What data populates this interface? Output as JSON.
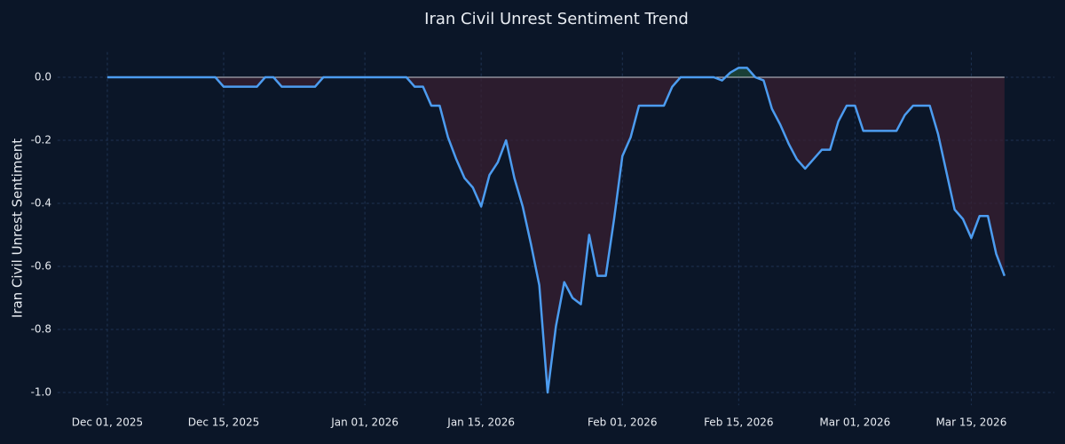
{
  "chart_data": {
    "type": "line",
    "title": "Iran Civil Unrest Sentiment Trend",
    "y_label": "Iran Civil Unrest Sentiment",
    "x": [
      "2025-12-01",
      "2025-12-02",
      "2025-12-03",
      "2025-12-04",
      "2025-12-05",
      "2025-12-06",
      "2025-12-07",
      "2025-12-08",
      "2025-12-09",
      "2025-12-10",
      "2025-12-11",
      "2025-12-12",
      "2025-12-13",
      "2025-12-14",
      "2025-12-15",
      "2025-12-16",
      "2025-12-17",
      "2025-12-18",
      "2025-12-19",
      "2025-12-20",
      "2025-12-21",
      "2025-12-22",
      "2025-12-23",
      "2025-12-24",
      "2025-12-25",
      "2025-12-26",
      "2025-12-27",
      "2025-12-28",
      "2025-12-29",
      "2025-12-30",
      "2025-12-31",
      "2026-01-01",
      "2026-01-02",
      "2026-01-03",
      "2026-01-04",
      "2026-01-05",
      "2026-01-06",
      "2026-01-07",
      "2026-01-08",
      "2026-01-09",
      "2026-01-10",
      "2026-01-11",
      "2026-01-12",
      "2026-01-13",
      "2026-01-14",
      "2026-01-15",
      "2026-01-16",
      "2026-01-17",
      "2026-01-18",
      "2026-01-19",
      "2026-01-20",
      "2026-01-21",
      "2026-01-22",
      "2026-01-23",
      "2026-01-24",
      "2026-01-25",
      "2026-01-26",
      "2026-01-27",
      "2026-01-28",
      "2026-01-29",
      "2026-01-30",
      "2026-01-31",
      "2026-02-01",
      "2026-02-02",
      "2026-02-03",
      "2026-02-04",
      "2026-02-05",
      "2026-02-06",
      "2026-02-07",
      "2026-02-08",
      "2026-02-09",
      "2026-02-10",
      "2026-02-11",
      "2026-02-12",
      "2026-02-13",
      "2026-02-14",
      "2026-02-15",
      "2026-02-16",
      "2026-02-17",
      "2026-02-18",
      "2026-02-19",
      "2026-02-20",
      "2026-02-21",
      "2026-02-22",
      "2026-02-23",
      "2026-02-24",
      "2026-02-25",
      "2026-02-26",
      "2026-02-27",
      "2026-02-28",
      "2026-03-01",
      "2026-03-02",
      "2026-03-03",
      "2026-03-04",
      "2026-03-05",
      "2026-03-06",
      "2026-03-07",
      "2026-03-08",
      "2026-03-09",
      "2026-03-10",
      "2026-03-11",
      "2026-03-12",
      "2026-03-13",
      "2026-03-14",
      "2026-03-15",
      "2026-03-16",
      "2026-03-17",
      "2026-03-18",
      "2026-03-19"
    ],
    "series": [
      {
        "name": "Iran Civil Unrest Sentiment",
        "color": "#4c9cf0",
        "values": [
          0,
          0,
          0,
          0,
          0,
          0,
          0,
          0,
          0,
          0,
          0,
          0,
          0,
          0,
          -0.03,
          -0.03,
          -0.03,
          -0.03,
          -0.03,
          0,
          0,
          -0.03,
          -0.03,
          -0.03,
          -0.03,
          -0.03,
          0,
          0,
          0,
          0,
          0,
          0,
          0,
          0,
          0,
          0,
          0,
          -0.03,
          -0.03,
          -0.09,
          -0.09,
          -0.19,
          -0.26,
          -0.32,
          -0.35,
          -0.41,
          -0.31,
          -0.27,
          -0.2,
          -0.32,
          -0.41,
          -0.53,
          -0.66,
          -1.0,
          -0.79,
          -0.65,
          -0.7,
          -0.72,
          -0.5,
          -0.63,
          -0.63,
          -0.45,
          -0.25,
          -0.19,
          -0.09,
          -0.09,
          -0.09,
          -0.09,
          -0.03,
          0,
          0,
          0,
          0,
          0,
          -0.01,
          0.015,
          0.03,
          0.03,
          0,
          -0.01,
          -0.1,
          -0.15,
          -0.21,
          -0.26,
          -0.29,
          -0.26,
          -0.23,
          -0.23,
          -0.14,
          -0.09,
          -0.09,
          -0.17,
          -0.17,
          -0.17,
          -0.17,
          -0.17,
          -0.12,
          -0.09,
          -0.09,
          -0.09,
          -0.18,
          -0.3,
          -0.42,
          -0.45,
          -0.51,
          -0.44,
          -0.44,
          -0.56,
          -0.63
        ]
      }
    ],
    "fill_below_color": "#3a1f30",
    "fill_above_color": "#1d4a3a",
    "xlim": [
      "2025-11-25",
      "2026-03-25"
    ],
    "xticks": [
      {
        "value": "2025-12-01",
        "label": "Dec 01, 2025"
      },
      {
        "value": "2025-12-15",
        "label": "Dec 15, 2025"
      },
      {
        "value": "2026-01-01",
        "label": "Jan 01, 2026"
      },
      {
        "value": "2026-01-15",
        "label": "Jan 15, 2026"
      },
      {
        "value": "2026-02-01",
        "label": "Feb 01, 2026"
      },
      {
        "value": "2026-02-15",
        "label": "Feb 15, 2026"
      },
      {
        "value": "2026-03-01",
        "label": "Mar 01, 2026"
      },
      {
        "value": "2026-03-15",
        "label": "Mar 15, 2026"
      }
    ],
    "ylim": [
      -1.04,
      0.08
    ],
    "yticks": [
      {
        "value": 0,
        "label": "0.0"
      },
      {
        "value": -0.2,
        "label": "-0.2"
      },
      {
        "value": -0.4,
        "label": "-0.4"
      },
      {
        "value": -0.6,
        "label": "-0.6"
      },
      {
        "value": -0.8,
        "label": "-0.8"
      },
      {
        "value": -1,
        "label": "-1.0"
      }
    ],
    "grid": true
  }
}
